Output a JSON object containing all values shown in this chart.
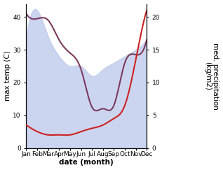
{
  "months": [
    "Jan",
    "Feb",
    "Mar",
    "Apr",
    "May",
    "Jun",
    "Jul",
    "Aug",
    "Sep",
    "Oct",
    "Nov",
    "Dec"
  ],
  "temp_max": [
    41,
    39.5,
    39,
    33,
    29,
    24,
    12.5,
    12,
    13,
    26,
    28.5,
    33
  ],
  "precip": [
    3.5,
    2.5,
    2.0,
    2.0,
    2.0,
    2.5,
    3.0,
    3.5,
    4.5,
    6.5,
    13.5,
    21.0
  ],
  "precip_area": [
    17,
    21,
    17,
    14,
    12.5,
    12.5,
    11,
    12,
    13,
    14,
    15,
    16.5
  ],
  "ylabel_left": "max temp (C)",
  "ylabel_right": "med. precipitation\n(kg/m2)",
  "xlabel": "date (month)",
  "ylim_left": [
    0,
    44
  ],
  "ylim_right": [
    0,
    22
  ],
  "temp_color": "#7B3B5E",
  "precip_line_color": "#CC2222",
  "area_color": "#BBC8EA",
  "area_alpha": 0.75,
  "bg_color": "#ffffff",
  "title_fontsize": 8,
  "axis_fontsize": 7.5,
  "tick_fontsize": 6.5
}
